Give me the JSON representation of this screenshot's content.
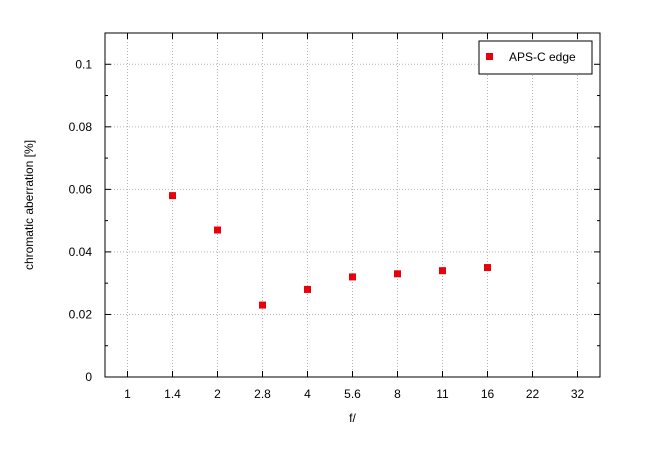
{
  "chart_data": {
    "type": "scatter",
    "title": "",
    "xlabel": "f/",
    "ylabel": "chromatic aberration [%]",
    "x_tick_labels": [
      "1",
      "1.4",
      "2",
      "2.8",
      "4",
      "5.6",
      "8",
      "11",
      "16",
      "22",
      "32"
    ],
    "y_tick_labels": [
      "0",
      "0.02",
      "0.04",
      "0.06",
      "0.08",
      "0.1"
    ],
    "ylim": [
      0,
      0.11
    ],
    "grid": true,
    "legend_position": "top-right",
    "series": [
      {
        "name": "APS-C edge",
        "color": "#e8000b",
        "marker": "square",
        "x": [
          "1.4",
          "2",
          "2.8",
          "4",
          "5.6",
          "8",
          "11",
          "16"
        ],
        "y": [
          0.058,
          0.047,
          0.023,
          0.028,
          0.032,
          0.033,
          0.034,
          0.035
        ]
      }
    ]
  }
}
